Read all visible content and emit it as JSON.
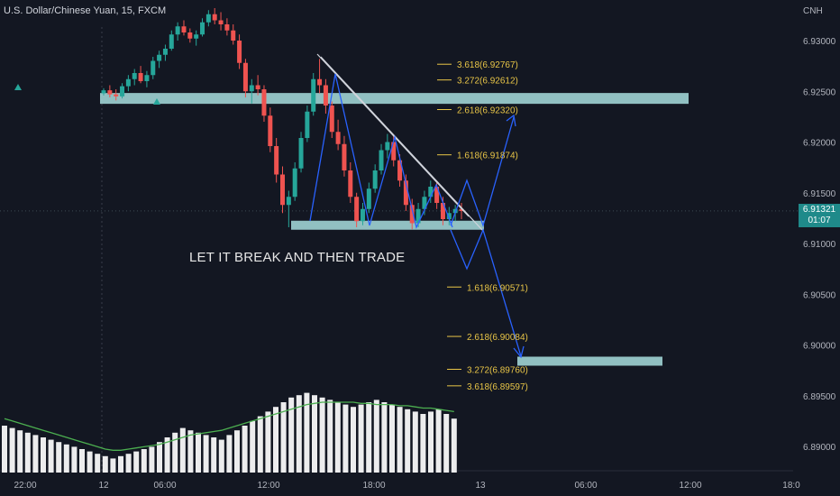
{
  "header": {
    "title": "U.S. Dollar/Chinese Yuan, 15, FXCM",
    "currency": "CNH"
  },
  "annotation": {
    "note": "LET IT BREAK AND THEN TRADE"
  },
  "last_price": {
    "value": "6.91321",
    "countdown": "01:07",
    "color": "#1f8a8a"
  },
  "colors": {
    "background": "#131722",
    "up": "#26a69a",
    "down": "#ef5350",
    "zone": "#a8dede",
    "fib": "#e8c547",
    "projection": "#2962ff",
    "volume": "#ffffff",
    "volume_ma": "#4caf50"
  },
  "chart_data": {
    "type": "candlestick",
    "y_axis": {
      "ticks": [
        6.93,
        6.925,
        6.92,
        6.915,
        6.91,
        6.905,
        6.9,
        6.895,
        6.89
      ],
      "tick_labels": [
        "6.93000",
        "6.92500",
        "6.92000",
        "6.91500",
        "6.91000",
        "6.90500",
        "6.90000",
        "6.89500",
        "6.89000"
      ]
    },
    "x_axis": {
      "tick_labels": [
        "22:00",
        "12",
        "06:00",
        "12:00",
        "18:00",
        "13",
        "06:00",
        "12:00",
        "18:0"
      ]
    },
    "horizontal_zones": [
      {
        "name": "resistance",
        "price": 6.9243
      },
      {
        "name": "support",
        "price": 6.9118
      },
      {
        "name": "target",
        "price": 6.8984
      }
    ],
    "fib_levels_up": [
      {
        "label": "3.618(6.92767)",
        "price": 6.92767
      },
      {
        "label": "3.272(6.92612)",
        "price": 6.92612
      },
      {
        "label": "2.618(6.92320)",
        "price": 6.9232
      },
      {
        "label": "1.618(6.91874)",
        "price": 6.91874
      }
    ],
    "fib_levels_down": [
      {
        "label": "1.618(6.90571)",
        "price": 6.90571
      },
      {
        "label": "2.618(6.90084)",
        "price": 6.90084
      },
      {
        "label": "3.272(6.89760)",
        "price": 6.8976
      },
      {
        "label": "3.618(6.89597)",
        "price": 6.89597
      }
    ],
    "candles": [
      [
        6.9248,
        6.9253,
        6.9246,
        6.9251
      ],
      [
        6.9251,
        6.9256,
        6.9244,
        6.9247
      ],
      [
        6.9247,
        6.9252,
        6.9241,
        6.9245
      ],
      [
        6.9245,
        6.9258,
        6.9243,
        6.9255
      ],
      [
        6.9255,
        6.9266,
        6.925,
        6.9262
      ],
      [
        6.9262,
        6.9272,
        6.9256,
        6.9268
      ],
      [
        6.9268,
        6.9275,
        6.9258,
        6.926
      ],
      [
        6.926,
        6.927,
        6.9254,
        6.9266
      ],
      [
        6.9266,
        6.9284,
        6.9262,
        6.928
      ],
      [
        6.928,
        6.929,
        6.9273,
        6.9286
      ],
      [
        6.9286,
        6.9296,
        6.928,
        6.9292
      ],
      [
        6.9292,
        6.931,
        6.929,
        6.9306
      ],
      [
        6.9306,
        6.9318,
        6.93,
        6.9314
      ],
      [
        6.9314,
        6.932,
        6.9305,
        6.9308
      ],
      [
        6.9308,
        6.9312,
        6.9298,
        6.9302
      ],
      [
        6.9302,
        6.931,
        6.9295,
        6.9306
      ],
      [
        6.9306,
        6.9322,
        6.9304,
        6.9318
      ],
      [
        6.9318,
        6.933,
        6.9314,
        6.9326
      ],
      [
        6.9326,
        6.9332,
        6.9316,
        6.932
      ],
      [
        6.932,
        6.9328,
        6.931,
        6.9316
      ],
      [
        6.9316,
        6.9322,
        6.9305,
        6.931
      ],
      [
        6.931,
        6.9316,
        6.9296,
        6.93
      ],
      [
        6.93,
        6.9306,
        6.9272,
        6.9278
      ],
      [
        6.9278,
        6.9282,
        6.9244,
        6.925
      ],
      [
        6.925,
        6.9262,
        6.9238,
        6.9256
      ],
      [
        6.9256,
        6.9266,
        6.9246,
        6.9252
      ],
      [
        6.9252,
        6.9256,
        6.922,
        6.9226
      ],
      [
        6.9226,
        6.9234,
        6.919,
        6.9196
      ],
      [
        6.9196,
        6.9204,
        6.916,
        6.9168
      ],
      [
        6.9168,
        6.9176,
        6.913,
        6.9138
      ],
      [
        6.9138,
        6.9152,
        6.9116,
        6.9146
      ],
      [
        6.9146,
        6.918,
        6.9142,
        6.9174
      ],
      [
        6.9174,
        6.921,
        6.917,
        6.9204
      ],
      [
        6.9204,
        6.9236,
        6.92,
        6.923
      ],
      [
        6.923,
        6.9268,
        6.9226,
        6.9262
      ],
      [
        6.9262,
        6.9282,
        6.9248,
        6.9256
      ],
      [
        6.9256,
        6.9262,
        6.9228,
        6.9236
      ],
      [
        6.9236,
        6.924,
        6.9204,
        6.921
      ],
      [
        6.921,
        6.9222,
        6.9192,
        6.9198
      ],
      [
        6.9198,
        6.9206,
        6.9166,
        6.9172
      ],
      [
        6.9172,
        6.918,
        6.914,
        6.9146
      ],
      [
        6.9146,
        6.915,
        6.9116,
        6.9122
      ],
      [
        6.9122,
        6.914,
        6.9118,
        6.9134
      ],
      [
        6.9134,
        6.916,
        6.913,
        6.9154
      ],
      [
        6.9154,
        6.9178,
        6.915,
        6.9172
      ],
      [
        6.9172,
        6.9198,
        6.9168,
        6.9192
      ],
      [
        6.9192,
        6.9208,
        6.9184,
        6.92
      ],
      [
        6.92,
        6.9206,
        6.9176,
        6.9182
      ],
      [
        6.9182,
        6.9188,
        6.9156,
        6.9162
      ],
      [
        6.9162,
        6.9168,
        6.9132,
        6.9138
      ],
      [
        6.9138,
        6.9144,
        6.9114,
        6.912
      ],
      [
        6.912,
        6.914,
        6.9116,
        6.9134
      ],
      [
        6.9134,
        6.9152,
        6.9128,
        6.9146
      ],
      [
        6.9146,
        6.9162,
        6.914,
        6.9156
      ],
      [
        6.9156,
        6.916,
        6.9134,
        6.914
      ],
      [
        6.914,
        6.9146,
        6.9118,
        6.9124
      ],
      [
        6.9124,
        6.9136,
        6.9118,
        6.913
      ],
      [
        6.913,
        6.9138,
        6.9122,
        6.9134
      ],
      [
        6.9134,
        6.914,
        6.9124,
        6.9132
      ]
    ],
    "volumes": [
      40,
      38,
      36,
      34,
      32,
      30,
      28,
      26,
      24,
      22,
      20,
      18,
      16,
      14,
      12,
      14,
      16,
      18,
      20,
      22,
      26,
      30,
      34,
      38,
      36,
      34,
      32,
      30,
      28,
      32,
      36,
      40,
      44,
      48,
      52,
      56,
      60,
      64,
      66,
      68,
      66,
      64,
      62,
      60,
      58,
      56,
      58,
      60,
      62,
      60,
      58,
      56,
      54,
      52,
      50,
      52,
      54,
      50,
      46
    ],
    "volume_ma": [
      46,
      44,
      42,
      40,
      38,
      36,
      34,
      32,
      30,
      28,
      26,
      24,
      22,
      20,
      19,
      19,
      20,
      21,
      22,
      23,
      24,
      26,
      28,
      30,
      32,
      33,
      34,
      35,
      36,
      38,
      40,
      42,
      44,
      46,
      48,
      50,
      52,
      54,
      56,
      58,
      59,
      60,
      60,
      60,
      60,
      60,
      59,
      59,
      58,
      58,
      58,
      57,
      57,
      56,
      55,
      55,
      54,
      53,
      52
    ],
    "volume_max": 100
  }
}
